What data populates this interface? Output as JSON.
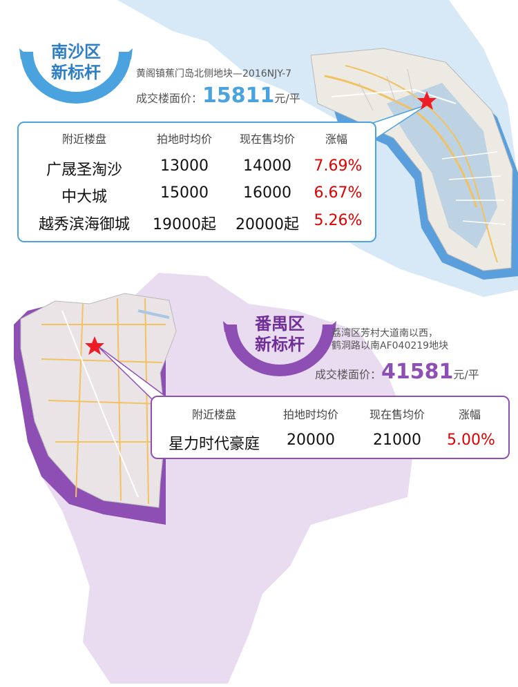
{
  "colors": {
    "nansha_accent": "#4aa3df",
    "panyu_accent": "#8e4fb5",
    "change_red": "#e00000",
    "nansha_area": "#d7e8f6",
    "panyu_area": "#e9dcf1"
  },
  "nansha": {
    "badge_line1": "南沙区",
    "badge_line2": "新标杆",
    "plot_name": "黄阁镇蕉门岛北侧地块—2016NJY-7",
    "price_label": "成交楼面价：",
    "price_value": "15811",
    "price_unit": "元/平",
    "marker_icon": "red-star-icon",
    "table": {
      "headers": [
        "附近楼盘",
        "拍地时均价",
        "现在售均价",
        "涨幅"
      ],
      "rows": [
        [
          "广晟圣淘沙",
          "13000",
          "14000",
          "7.69%"
        ],
        [
          "中大城",
          "15000",
          "16000",
          "6.67%"
        ],
        [
          "越秀滨海御城",
          "19000起",
          "20000起",
          "5.26%"
        ]
      ]
    }
  },
  "panyu": {
    "badge_line1": "番禺区",
    "badge_line2": "新标杆",
    "plot_name_line1": "荔湾区芳村大道南以西，",
    "plot_name_line2": "鹤洞路以南AF040219地块",
    "price_label": "成交楼面价：",
    "price_value": "41581",
    "price_unit": "元/平",
    "marker_icon": "red-star-icon",
    "table": {
      "headers": [
        "附近楼盘",
        "拍地时均价",
        "现在售均价",
        "涨幅"
      ],
      "rows": [
        [
          "星力时代豪庭",
          "20000",
          "21000",
          "5.00%"
        ]
      ]
    }
  }
}
